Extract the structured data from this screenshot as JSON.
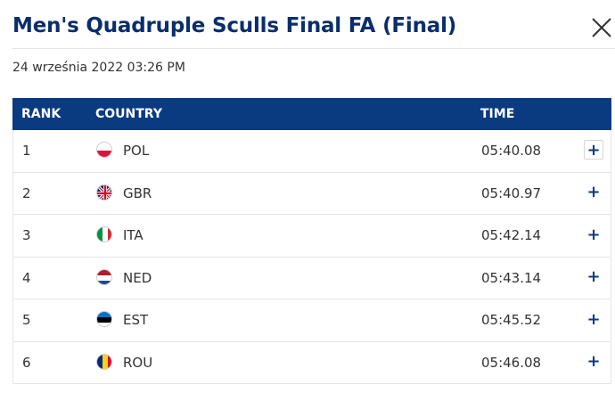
{
  "header": {
    "title": "Men's Quadruple Sculls Final FA (Final)",
    "timestamp": "24 września 2022 03:26 PM"
  },
  "table": {
    "columns": {
      "rank": "RANK",
      "country": "COUNTRY",
      "time": "TIME"
    },
    "rows": [
      {
        "rank": "1",
        "country": "POL",
        "time": "05:40.08",
        "flag": "poland-flag-icon"
      },
      {
        "rank": "2",
        "country": "GBR",
        "time": "05:40.97",
        "flag": "uk-flag-icon"
      },
      {
        "rank": "3",
        "country": "ITA",
        "time": "05:42.14",
        "flag": "italy-flag-icon"
      },
      {
        "rank": "4",
        "country": "NED",
        "time": "05:43.14",
        "flag": "netherlands-flag-icon"
      },
      {
        "rank": "5",
        "country": "EST",
        "time": "05:45.52",
        "flag": "estonia-flag-icon"
      },
      {
        "rank": "6",
        "country": "ROU",
        "time": "05:46.08",
        "flag": "romania-flag-icon"
      }
    ],
    "expand_symbol": "+"
  },
  "colors": {
    "title": "#0b2e6b",
    "header_bg": "#0a3b80",
    "accent": "#0a3b80"
  }
}
